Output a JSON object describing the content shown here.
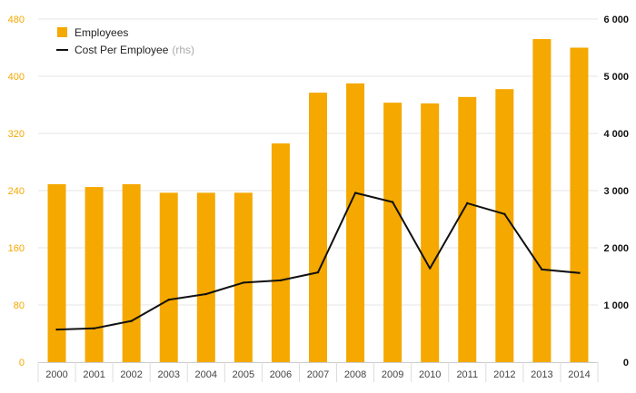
{
  "chart_data": {
    "type": "bar",
    "categories": [
      "2000",
      "2001",
      "2002",
      "2003",
      "2004",
      "2005",
      "2006",
      "2007",
      "2008",
      "2009",
      "2010",
      "2011",
      "2012",
      "2013",
      "2014"
    ],
    "series": [
      {
        "name": "Employees",
        "type": "bar",
        "axis": "left",
        "color": "#f5a800",
        "values": [
          249,
          245,
          249,
          237,
          237,
          237,
          306,
          377,
          390,
          363,
          362,
          371,
          382,
          452,
          440
        ]
      },
      {
        "name": "Cost Per Employee",
        "type": "line",
        "axis": "right",
        "color": "#111111",
        "values": [
          570,
          590,
          720,
          1090,
          1190,
          1390,
          1430,
          1570,
          2960,
          2800,
          1640,
          2780,
          2590,
          1620,
          1560
        ]
      }
    ],
    "legend": {
      "placement": "top-left",
      "items": [
        {
          "label": "Employees",
          "note": ""
        },
        {
          "label": "Cost Per Employee",
          "note": "(rhs)"
        }
      ]
    },
    "y_left": {
      "ylim": [
        0,
        480
      ],
      "ticks": [
        "0",
        "80",
        "160",
        "240",
        "320",
        "400",
        "480"
      ],
      "color": "#f5a800"
    },
    "y_right": {
      "ylim": [
        0,
        6000
      ],
      "ticks": [
        "0",
        "1 000",
        "2 000",
        "3 000",
        "4 000",
        "5 000",
        "6 000"
      ],
      "color": "#111111"
    },
    "grid": true
  }
}
